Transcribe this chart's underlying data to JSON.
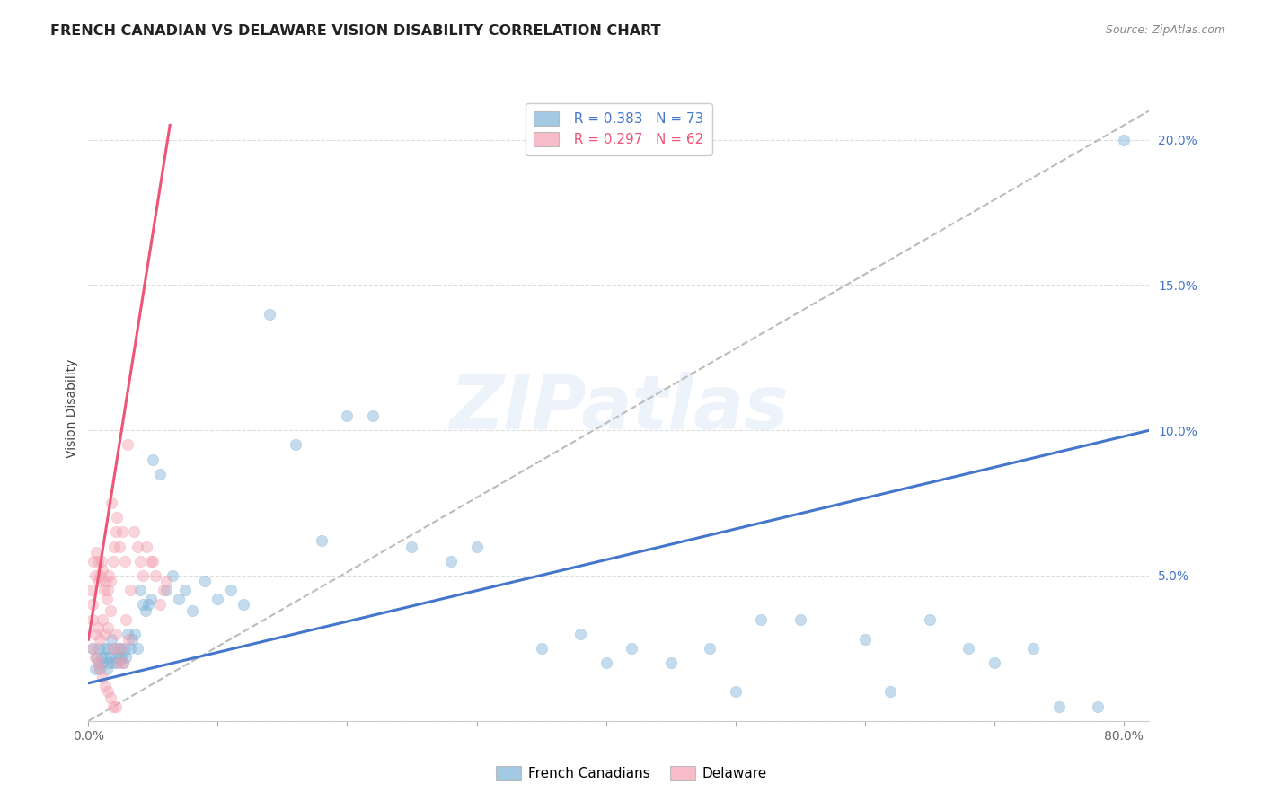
{
  "title": "FRENCH CANADIAN VS DELAWARE VISION DISABILITY CORRELATION CHART",
  "source": "Source: ZipAtlas.com",
  "ylabel": "Vision Disability",
  "watermark": "ZIPatlas",
  "blue_R": 0.383,
  "blue_N": 73,
  "pink_R": 0.297,
  "pink_N": 62,
  "blue_color": "#7EB3D8",
  "pink_color": "#F4A0B0",
  "blue_line_color": "#4477CC",
  "pink_line_color": "#EE5577",
  "dashed_line_color": "#BBBBBB",
  "grid_color": "#DDDDDD",
  "xlim": [
    0.0,
    0.82
  ],
  "ylim": [
    0.0,
    0.215
  ],
  "xticks": [
    0.0,
    0.1,
    0.2,
    0.3,
    0.4,
    0.5,
    0.6,
    0.7,
    0.8
  ],
  "xticklabels": [
    "0.0%",
    "",
    "",
    "",
    "",
    "",
    "",
    "",
    "80.0%"
  ],
  "ytick_positions": [
    0.0,
    0.05,
    0.1,
    0.15,
    0.2
  ],
  "ytick_labels_right": [
    "",
    "5.0%",
    "10.0%",
    "15.0%",
    "20.0%"
  ],
  "blue_scatter_x": [
    0.003,
    0.005,
    0.006,
    0.007,
    0.008,
    0.009,
    0.01,
    0.011,
    0.012,
    0.013,
    0.014,
    0.015,
    0.016,
    0.017,
    0.018,
    0.019,
    0.02,
    0.021,
    0.022,
    0.023,
    0.024,
    0.025,
    0.026,
    0.027,
    0.028,
    0.029,
    0.03,
    0.032,
    0.034,
    0.036,
    0.038,
    0.04,
    0.042,
    0.044,
    0.046,
    0.048,
    0.05,
    0.055,
    0.06,
    0.065,
    0.07,
    0.075,
    0.08,
    0.09,
    0.1,
    0.11,
    0.12,
    0.14,
    0.16,
    0.18,
    0.2,
    0.22,
    0.25,
    0.28,
    0.3,
    0.35,
    0.38,
    0.4,
    0.42,
    0.45,
    0.48,
    0.5,
    0.52,
    0.55,
    0.6,
    0.62,
    0.65,
    0.68,
    0.7,
    0.73,
    0.75,
    0.78,
    0.8
  ],
  "blue_scatter_y": [
    0.025,
    0.018,
    0.022,
    0.02,
    0.025,
    0.018,
    0.022,
    0.02,
    0.025,
    0.022,
    0.018,
    0.025,
    0.02,
    0.022,
    0.028,
    0.02,
    0.025,
    0.022,
    0.02,
    0.025,
    0.022,
    0.025,
    0.022,
    0.02,
    0.025,
    0.022,
    0.03,
    0.025,
    0.028,
    0.03,
    0.025,
    0.045,
    0.04,
    0.038,
    0.04,
    0.042,
    0.09,
    0.085,
    0.045,
    0.05,
    0.042,
    0.045,
    0.038,
    0.048,
    0.042,
    0.045,
    0.04,
    0.14,
    0.095,
    0.062,
    0.105,
    0.105,
    0.06,
    0.055,
    0.06,
    0.025,
    0.03,
    0.02,
    0.025,
    0.02,
    0.025,
    0.01,
    0.035,
    0.035,
    0.028,
    0.01,
    0.035,
    0.025,
    0.02,
    0.025,
    0.005,
    0.005,
    0.2
  ],
  "pink_scatter_x": [
    0.002,
    0.003,
    0.004,
    0.005,
    0.006,
    0.007,
    0.008,
    0.009,
    0.01,
    0.011,
    0.012,
    0.013,
    0.014,
    0.015,
    0.016,
    0.017,
    0.018,
    0.019,
    0.02,
    0.021,
    0.022,
    0.024,
    0.026,
    0.028,
    0.03,
    0.032,
    0.035,
    0.038,
    0.04,
    0.042,
    0.045,
    0.048,
    0.05,
    0.052,
    0.055,
    0.058,
    0.06,
    0.003,
    0.005,
    0.007,
    0.009,
    0.011,
    0.013,
    0.015,
    0.017,
    0.019,
    0.021,
    0.023,
    0.025,
    0.027,
    0.029,
    0.031,
    0.003,
    0.005,
    0.007,
    0.009,
    0.011,
    0.013,
    0.015,
    0.017,
    0.019,
    0.021
  ],
  "pink_scatter_y": [
    0.045,
    0.04,
    0.055,
    0.05,
    0.058,
    0.055,
    0.048,
    0.05,
    0.055,
    0.052,
    0.045,
    0.048,
    0.042,
    0.045,
    0.05,
    0.048,
    0.075,
    0.055,
    0.06,
    0.065,
    0.07,
    0.06,
    0.065,
    0.055,
    0.095,
    0.045,
    0.065,
    0.06,
    0.055,
    0.05,
    0.06,
    0.055,
    0.055,
    0.05,
    0.04,
    0.045,
    0.048,
    0.035,
    0.03,
    0.032,
    0.028,
    0.035,
    0.03,
    0.032,
    0.038,
    0.025,
    0.03,
    0.02,
    0.025,
    0.02,
    0.035,
    0.028,
    0.025,
    0.022,
    0.02,
    0.018,
    0.015,
    0.012,
    0.01,
    0.008,
    0.005,
    0.005
  ],
  "blue_trend_x": [
    0.0,
    0.82
  ],
  "blue_trend_y": [
    0.013,
    0.1
  ],
  "pink_trend_x": [
    0.0,
    0.063
  ],
  "pink_trend_y": [
    0.028,
    0.205
  ],
  "dashed_trend_x": [
    0.0,
    0.82
  ],
  "dashed_trend_y": [
    0.0,
    0.21
  ],
  "legend_blue_label": "French Canadians",
  "legend_pink_label": "Delaware",
  "title_fontsize": 11.5,
  "axis_label_fontsize": 10,
  "tick_fontsize": 10,
  "legend_fontsize": 11,
  "source_fontsize": 9,
  "watermark_fontsize": 60,
  "marker_size": 80,
  "marker_alpha": 0.45
}
